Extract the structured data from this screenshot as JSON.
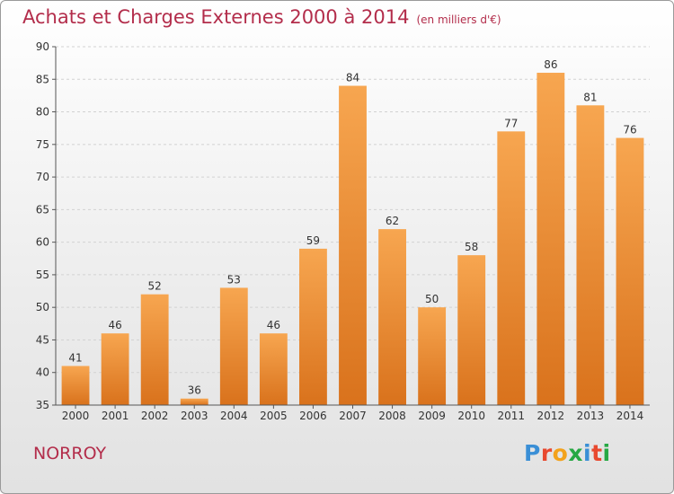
{
  "title": "Achats et Charges Externes 2000 à 2014",
  "title_unit": "(en milliers d'€)",
  "commune": "NORROY",
  "logo": {
    "text": "Proxiti",
    "letters": [
      {
        "ch": "P",
        "color": "#3a8fd6"
      },
      {
        "ch": "r",
        "color": "#e8492f"
      },
      {
        "ch": "o",
        "color": "#f3a21c"
      },
      {
        "ch": "x",
        "color": "#27a844"
      },
      {
        "ch": "i",
        "color": "#3a8fd6"
      },
      {
        "ch": "t",
        "color": "#e8492f"
      },
      {
        "ch": "i",
        "color": "#27a844"
      }
    ]
  },
  "colors": {
    "bar_top": "#f7a650",
    "bar_bottom": "#d9721c",
    "title": "#b32d4b",
    "grid": "#d2d2d2"
  },
  "chart_data": {
    "type": "bar",
    "categories": [
      "2000",
      "2001",
      "2002",
      "2003",
      "2004",
      "2005",
      "2006",
      "2007",
      "2008",
      "2009",
      "2010",
      "2011",
      "2012",
      "2013",
      "2014"
    ],
    "values": [
      41,
      46,
      52,
      36,
      53,
      46,
      59,
      84,
      62,
      50,
      58,
      77,
      86,
      81,
      76
    ],
    "yticks": [
      35,
      40,
      45,
      50,
      55,
      60,
      65,
      70,
      75,
      80,
      85,
      90
    ],
    "ylim": [
      35,
      90
    ],
    "grid": true,
    "legend": "none"
  }
}
